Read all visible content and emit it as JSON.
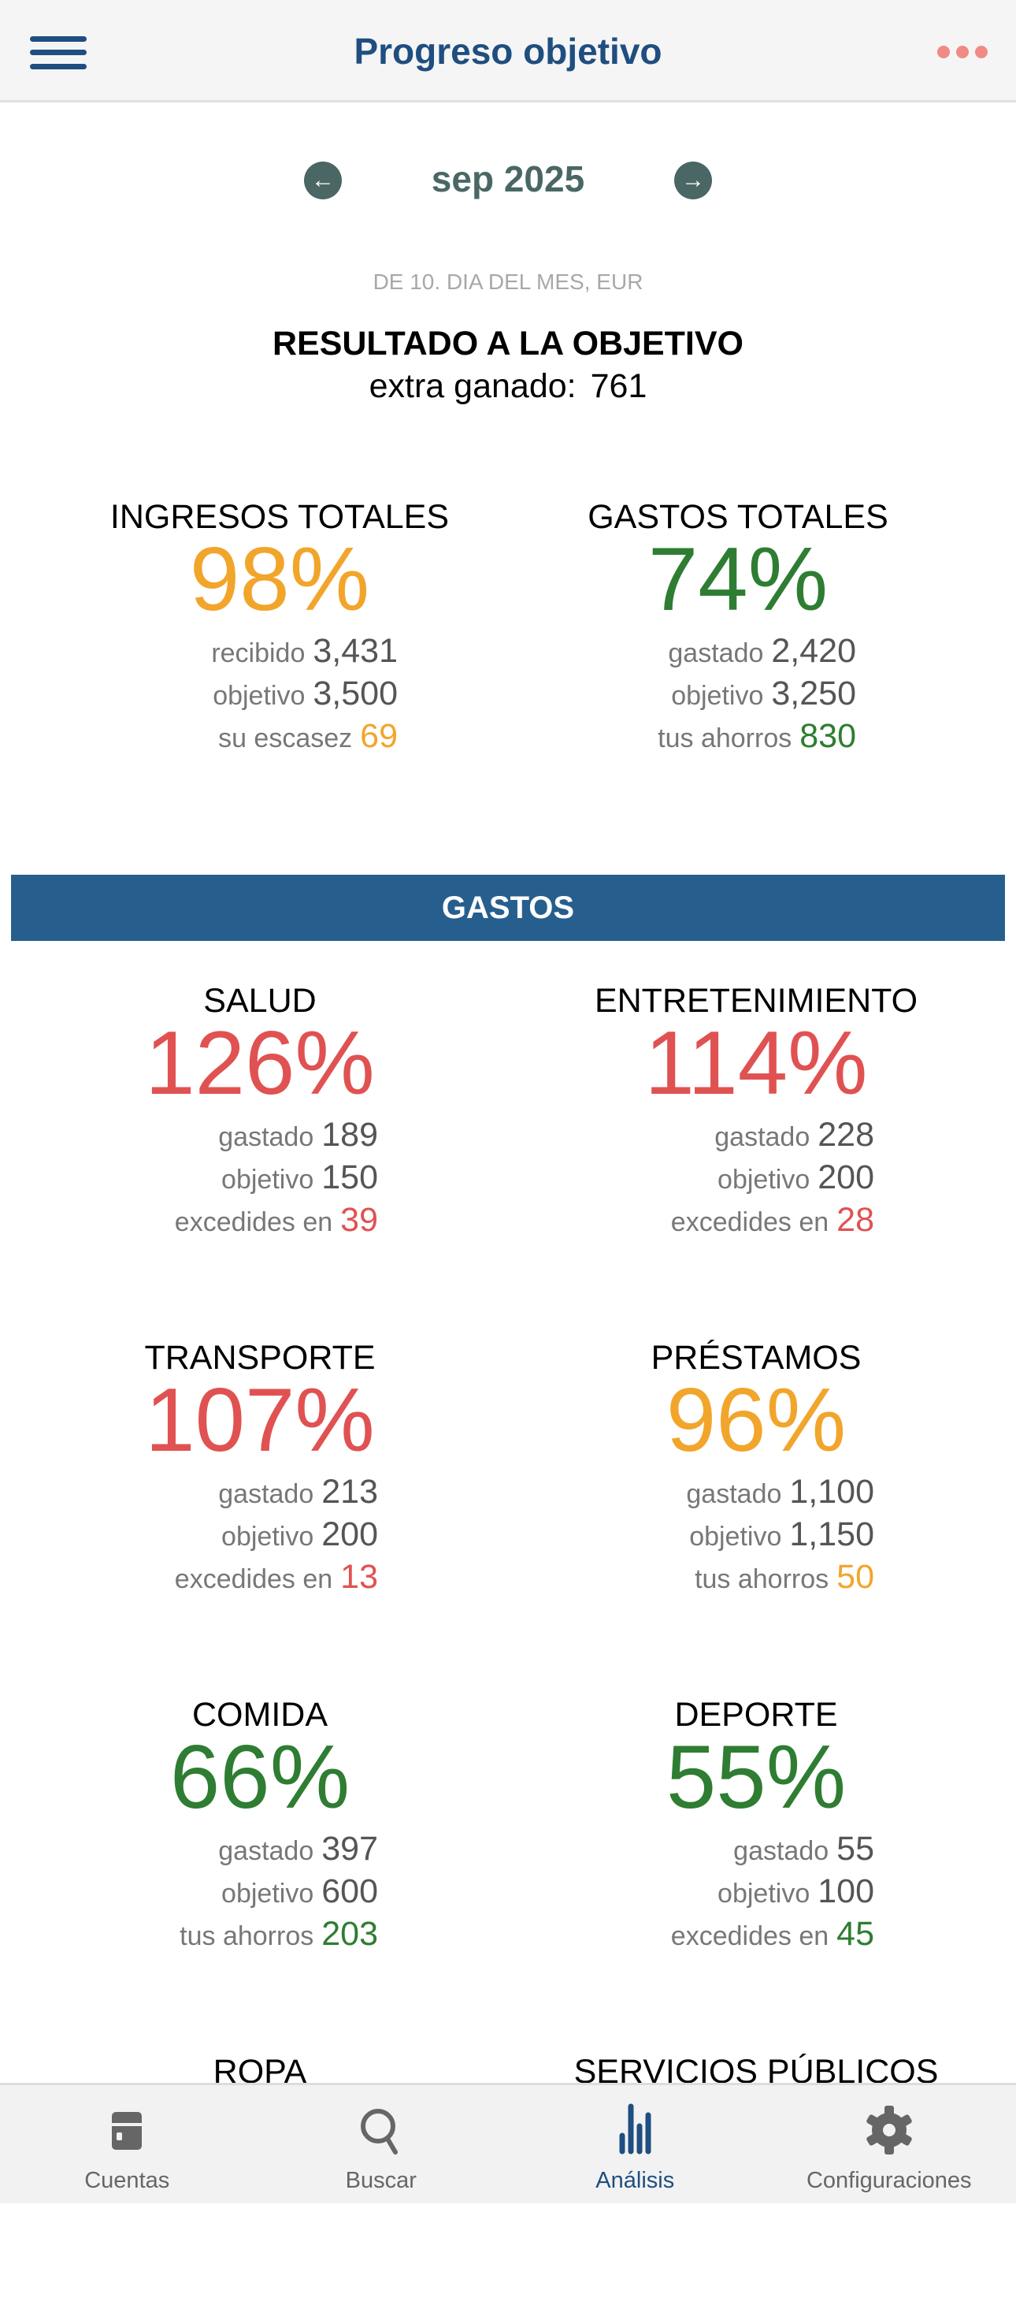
{
  "header": {
    "title": "Progreso objetivo"
  },
  "period": {
    "month": "sep 2025",
    "subtitle": "DE 10. DIA DEL MES, EUR"
  },
  "result": {
    "heading": "RESULTADO A LA OBJETIVO",
    "label": "extra ganado:",
    "value": "761"
  },
  "colors": {
    "orange": "#f2a52b",
    "green": "#2e7d32",
    "red": "#e05252",
    "brand": "#1f4e80",
    "band": "#265f8e"
  },
  "totals": [
    {
      "title": "INGRESOS TOTALES",
      "percent": "98%",
      "color": "orange",
      "lines": [
        {
          "label": "recibido",
          "value": "3,431"
        },
        {
          "label": "objetivo",
          "value": "3,500"
        },
        {
          "label": "su escasez",
          "value": "69",
          "highlight": true
        }
      ]
    },
    {
      "title": "GASTOS TOTALES",
      "percent": "74%",
      "color": "green",
      "lines": [
        {
          "label": "gastado",
          "value": "2,420"
        },
        {
          "label": "objetivo",
          "value": "3,250"
        },
        {
          "label": "tus ahorros",
          "value": "830",
          "highlight": true
        }
      ]
    }
  ],
  "section": {
    "title": "GASTOS"
  },
  "categories": [
    {
      "title": "SALUD",
      "percent": "126%",
      "color": "red",
      "lines": [
        {
          "label": "gastado",
          "value": "189"
        },
        {
          "label": "objetivo",
          "value": "150"
        },
        {
          "label": "excedides en",
          "value": "39",
          "highlight": true
        }
      ]
    },
    {
      "title": "ENTRETENIMIENTO",
      "percent": "114%",
      "color": "red",
      "lines": [
        {
          "label": "gastado",
          "value": "228"
        },
        {
          "label": "objetivo",
          "value": "200"
        },
        {
          "label": "excedides en",
          "value": "28",
          "highlight": true
        }
      ]
    },
    {
      "title": "TRANSPORTE",
      "percent": "107%",
      "color": "red",
      "lines": [
        {
          "label": "gastado",
          "value": "213"
        },
        {
          "label": "objetivo",
          "value": "200"
        },
        {
          "label": "excedides en",
          "value": "13",
          "highlight": true
        }
      ]
    },
    {
      "title": "PRÉSTAMOS",
      "percent": "96%",
      "color": "orange",
      "lines": [
        {
          "label": "gastado",
          "value": "1,100"
        },
        {
          "label": "objetivo",
          "value": "1,150"
        },
        {
          "label": "tus ahorros",
          "value": "50",
          "highlight": true
        }
      ]
    },
    {
      "title": "COMIDA",
      "percent": "66%",
      "color": "green",
      "lines": [
        {
          "label": "gastado",
          "value": "397"
        },
        {
          "label": "objetivo",
          "value": "600"
        },
        {
          "label": "tus ahorros",
          "value": "203",
          "highlight": true
        }
      ]
    },
    {
      "title": "DEPORTE",
      "percent": "55%",
      "color": "green",
      "lines": [
        {
          "label": "gastado",
          "value": "55"
        },
        {
          "label": "objetivo",
          "value": "100"
        },
        {
          "label": "excedides en",
          "value": "45",
          "highlight": true
        }
      ]
    },
    {
      "title": "ROPA"
    },
    {
      "title": "SERVICIOS PÚBLICOS"
    }
  ],
  "tabs": [
    {
      "label": "Cuentas",
      "icon": "card-icon"
    },
    {
      "label": "Buscar",
      "icon": "search-icon"
    },
    {
      "label": "Análisis",
      "icon": "bar-chart-icon",
      "active": true
    },
    {
      "label": "Configuraciones",
      "icon": "gear-icon"
    }
  ]
}
